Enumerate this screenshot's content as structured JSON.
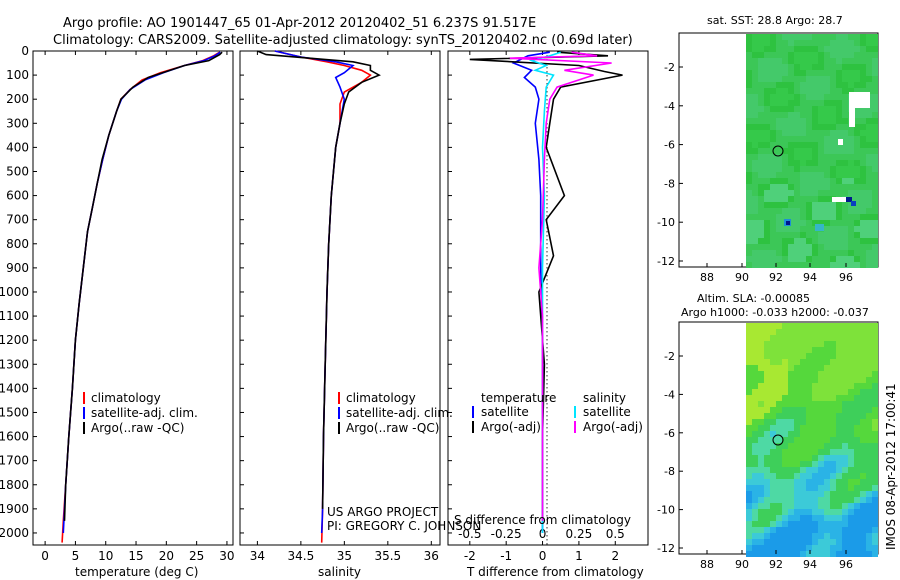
{
  "header": {
    "title_line1": "Argo profile: AO 1901447_65 01-Apr-2012 20120402_51 6.237S 91.517E",
    "title_line2": "Climatology: CARS2009. Satellite-adjusted climatology: synTS_20120402.nc (0.69d later)"
  },
  "colors": {
    "climatology": "#ff0000",
    "satellite": "#0000ff",
    "argo": "#000000",
    "sat_salinity": "#00e5ff",
    "argo_salinity": "#ff00ff"
  },
  "chart_data": [
    {
      "id": "temperature",
      "type": "line",
      "xlabel": "temperature (deg C)",
      "ylabel": "depth",
      "xlim": [
        -2,
        31
      ],
      "ylim": [
        2050,
        0
      ],
      "xticks": [
        0,
        5,
        10,
        15,
        20,
        25,
        30
      ],
      "yticks": [
        0,
        100,
        200,
        300,
        400,
        500,
        600,
        700,
        800,
        900,
        1000,
        1100,
        1200,
        1300,
        1400,
        1500,
        1600,
        1700,
        1800,
        1900,
        2000
      ],
      "legend": [
        "climatology",
        "satellite-adj. clim.",
        "Argo(..raw -QC)"
      ],
      "series": [
        {
          "name": "climatology",
          "color": "#ff0000",
          "points": [
            [
              28.8,
              5
            ],
            [
              27.8,
              20
            ],
            [
              26,
              40
            ],
            [
              23,
              60
            ],
            [
              19,
              90
            ],
            [
              16,
              120
            ],
            [
              14,
              160
            ],
            [
              12.5,
              200
            ],
            [
              11.8,
              250
            ],
            [
              10.5,
              350
            ],
            [
              9.5,
              450
            ],
            [
              8.6,
              550
            ],
            [
              7.8,
              650
            ],
            [
              7,
              750
            ],
            [
              6.3,
              900
            ],
            [
              5.6,
              1050
            ],
            [
              5,
              1200
            ],
            [
              4.5,
              1400
            ],
            [
              3.9,
              1600
            ],
            [
              3.4,
              1800
            ],
            [
              3,
              1950
            ],
            [
              2.8,
              2040
            ]
          ]
        },
        {
          "name": "satellite-adj. clim.",
          "color": "#0000ff",
          "points": [
            [
              28.9,
              5
            ],
            [
              28,
              20
            ],
            [
              26.2,
              40
            ],
            [
              23,
              60
            ],
            [
              19.5,
              90
            ],
            [
              16.5,
              120
            ],
            [
              14,
              160
            ],
            [
              12.6,
              200
            ],
            [
              11.8,
              250
            ],
            [
              10.5,
              350
            ],
            [
              9.5,
              450
            ],
            [
              8.6,
              550
            ],
            [
              7.8,
              650
            ],
            [
              7,
              750
            ],
            [
              6.3,
              900
            ],
            [
              5.6,
              1050
            ],
            [
              5,
              1200
            ],
            [
              4.5,
              1400
            ],
            [
              3.9,
              1600
            ],
            [
              3.4,
              1800
            ],
            [
              3.1,
              1950
            ],
            [
              3,
              2000
            ]
          ]
        },
        {
          "name": "Argo(..raw -QC)",
          "color": "#000000",
          "points": [
            [
              29.2,
              5
            ],
            [
              28.8,
              15
            ],
            [
              27,
              40
            ],
            [
              23,
              60
            ],
            [
              20,
              85
            ],
            [
              17,
              110
            ],
            [
              14.5,
              150
            ],
            [
              12.5,
              200
            ],
            [
              11.8,
              250
            ],
            [
              10.5,
              350
            ],
            [
              9.4,
              450
            ],
            [
              8.6,
              550
            ],
            [
              7.8,
              650
            ],
            [
              7,
              750
            ],
            [
              6.3,
              900
            ],
            [
              5.6,
              1050
            ],
            [
              5,
              1200
            ],
            [
              4.5,
              1400
            ],
            [
              3.9,
              1600
            ],
            [
              3.4,
              1800
            ],
            [
              3.2,
              1950
            ]
          ]
        }
      ]
    },
    {
      "id": "salinity",
      "type": "line",
      "xlabel": "salinity",
      "ylabel": "",
      "xlim": [
        33.8,
        36.1
      ],
      "ylim": [
        2050,
        0
      ],
      "xticks": [
        34,
        34.5,
        35,
        35.5,
        36
      ],
      "yticks": [],
      "legend": [
        "climatology",
        "satellite-adj. clim.",
        "Argo(..raw -QC)"
      ],
      "annotations": [
        "US ARGO PROJECT",
        "PI: GREGORY C. JOHNSON"
      ],
      "series": [
        {
          "name": "climatology",
          "color": "#ff0000",
          "points": [
            [
              34.2,
              0
            ],
            [
              34.5,
              25
            ],
            [
              34.8,
              45
            ],
            [
              35,
              60
            ],
            [
              35.2,
              80
            ],
            [
              35.3,
              100
            ],
            [
              35.2,
              130
            ],
            [
              35,
              170
            ],
            [
              34.95,
              220
            ],
            [
              34.95,
              300
            ],
            [
              34.9,
              400
            ],
            [
              34.85,
              600
            ],
            [
              34.82,
              800
            ],
            [
              34.8,
              1000
            ],
            [
              34.78,
              1300
            ],
            [
              34.76,
              1600
            ],
            [
              34.75,
              1900
            ],
            [
              34.74,
              2040
            ]
          ]
        },
        {
          "name": "satellite-adj. clim.",
          "color": "#0000ff",
          "points": [
            [
              34.2,
              0
            ],
            [
              34.5,
              25
            ],
            [
              34.9,
              45
            ],
            [
              35.1,
              60
            ],
            [
              35,
              90
            ],
            [
              34.9,
              110
            ],
            [
              34.95,
              150
            ],
            [
              35,
              200
            ],
            [
              34.95,
              300
            ],
            [
              34.9,
              400
            ],
            [
              34.85,
              600
            ],
            [
              34.82,
              800
            ],
            [
              34.8,
              1000
            ],
            [
              34.78,
              1300
            ],
            [
              34.76,
              1600
            ],
            [
              34.75,
              1900
            ],
            [
              34.74,
              2000
            ]
          ]
        },
        {
          "name": "Argo(..raw -QC)",
          "color": "#000000",
          "points": [
            [
              34,
              0
            ],
            [
              34.1,
              15
            ],
            [
              34.6,
              30
            ],
            [
              35.1,
              45
            ],
            [
              35.3,
              60
            ],
            [
              35.3,
              80
            ],
            [
              35.4,
              100
            ],
            [
              35.2,
              130
            ],
            [
              35.05,
              170
            ],
            [
              35,
              220
            ],
            [
              34.95,
              300
            ],
            [
              34.9,
              400
            ],
            [
              34.85,
              600
            ],
            [
              34.82,
              800
            ],
            [
              34.8,
              1000
            ],
            [
              34.78,
              1300
            ],
            [
              34.76,
              1600
            ],
            [
              34.75,
              1900
            ]
          ]
        }
      ]
    },
    {
      "id": "difference",
      "type": "line",
      "xlabel": "T difference from climatology",
      "top_label": "S difference from climatology",
      "xlim": [
        -2.6,
        2.9
      ],
      "ylim": [
        2050,
        0
      ],
      "xticks": [
        -2,
        -1,
        0,
        1,
        2
      ],
      "sticks": [
        "-0.5",
        "-0.25",
        "0",
        "0.25",
        "0.5"
      ],
      "legend": {
        "temperature_title": "temperature",
        "salinity_title": "salinity",
        "items": [
          "satellite",
          "Argo(-adj)",
          "satellite",
          "Argo(-adj)"
        ]
      },
      "series": [
        {
          "name": "temperature satellite",
          "color": "#0000ff",
          "points": [
            [
              0.2,
              5
            ],
            [
              -0.4,
              20
            ],
            [
              -0.8,
              50
            ],
            [
              -0.3,
              80
            ],
            [
              -0.5,
              110
            ],
            [
              -0.2,
              150
            ],
            [
              -0.1,
              200
            ],
            [
              -0.2,
              300
            ],
            [
              -0.1,
              450
            ],
            [
              -0.05,
              600
            ],
            [
              -0.05,
              900
            ],
            [
              0,
              1200
            ],
            [
              0,
              1600
            ],
            [
              0,
              2000
            ]
          ]
        },
        {
          "name": "temperature Argo(-adj)",
          "color": "#000000",
          "points": [
            [
              0.4,
              5
            ],
            [
              1.8,
              20
            ],
            [
              -2,
              35
            ],
            [
              1,
              60
            ],
            [
              1.7,
              85
            ],
            [
              2.2,
              100
            ],
            [
              0.5,
              150
            ],
            [
              0.3,
              200
            ],
            [
              0.2,
              300
            ],
            [
              0.1,
              400
            ],
            [
              0.6,
              600
            ],
            [
              0.1,
              700
            ],
            [
              0.3,
              850
            ],
            [
              -0.1,
              1000
            ],
            [
              0.05,
              1300
            ],
            [
              0,
              1600
            ],
            [
              0,
              1950
            ]
          ]
        },
        {
          "name": "salinity satellite",
          "color": "#00e5ff",
          "points": [
            [
              0.5,
              5
            ],
            [
              0.2,
              20
            ],
            [
              -0.3,
              40
            ],
            [
              0.1,
              60
            ],
            [
              -0.2,
              80
            ],
            [
              0.3,
              100
            ],
            [
              0.1,
              150
            ],
            [
              0.05,
              250
            ],
            [
              0,
              400
            ],
            [
              0.05,
              600
            ],
            [
              0,
              900
            ],
            [
              0,
              1200
            ],
            [
              0,
              1600
            ],
            [
              0,
              2000
            ]
          ]
        },
        {
          "name": "salinity Argo(-adj)",
          "color": "#ff00ff",
          "points": [
            [
              0.8,
              5
            ],
            [
              1.5,
              20
            ],
            [
              -0.9,
              30
            ],
            [
              1.9,
              50
            ],
            [
              0.6,
              80
            ],
            [
              1.4,
              100
            ],
            [
              0.4,
              150
            ],
            [
              0.2,
              200
            ],
            [
              0.1,
              300
            ],
            [
              0.05,
              450
            ],
            [
              0,
              700
            ],
            [
              -0.1,
              900
            ],
            [
              0,
              1100
            ],
            [
              0,
              1400
            ],
            [
              0,
              1700
            ],
            [
              0,
              1950
            ]
          ]
        }
      ]
    },
    {
      "id": "sst_map",
      "type": "heatmap",
      "title": "sat. SST: 28.8 Argo: 28.7",
      "xticks": [
        "88",
        "90",
        "92",
        "94",
        "96"
      ],
      "yticks": [
        "-2",
        "-4",
        "-6",
        "-8",
        "-10",
        "-12"
      ]
    },
    {
      "id": "sla_map",
      "type": "heatmap",
      "title_line1": "Altim. SLA: -0.00085",
      "title_line2": "Argo h1000: -0.033 h2000: -0.037",
      "xticks": [
        "88",
        "90",
        "92",
        "94",
        "96"
      ],
      "yticks": [
        "-2",
        "-4",
        "-6",
        "-8",
        "-10",
        "-12"
      ]
    }
  ],
  "footer": {
    "stamp": "IMOS 08-Apr-2012 17:00:41"
  }
}
